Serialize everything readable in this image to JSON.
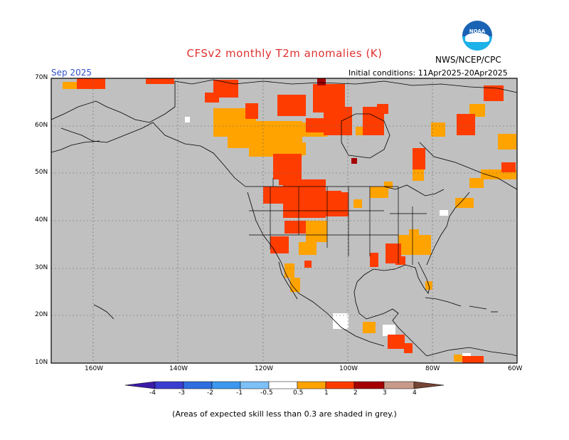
{
  "header": {
    "title": "CFSv2 monthly T2m anomalies (K)",
    "agency": "NWS/NCEP/CPC",
    "logo_text": "NOAA",
    "month": "Sep 2025",
    "initial_conditions": "Initial conditions: 11Apr2025-20Apr2025"
  },
  "axes": {
    "lat_labels": [
      "70N",
      "60N",
      "50N",
      "40N",
      "30N",
      "20N",
      "10N"
    ],
    "lon_labels": [
      "160W",
      "140W",
      "120W",
      "100W",
      "80W",
      "60W"
    ]
  },
  "colorbar": {
    "labels": [
      "-4",
      "-3",
      "-2",
      "-1",
      "-0.5",
      "0.5",
      "1",
      "2",
      "3",
      "4"
    ],
    "colors": [
      "#3b1ca8",
      "#3a3ed0",
      "#2f6ee0",
      "#3c98ee",
      "#7ec0f8",
      "#ffffff",
      "#ffa300",
      "#ff3c00",
      "#a50000",
      "#c89a8a",
      "#744434"
    ],
    "grey_color": "#c0c0c0"
  },
  "footnote": "(Areas of expected skill less than 0.3 are shaded in grey.)"
}
